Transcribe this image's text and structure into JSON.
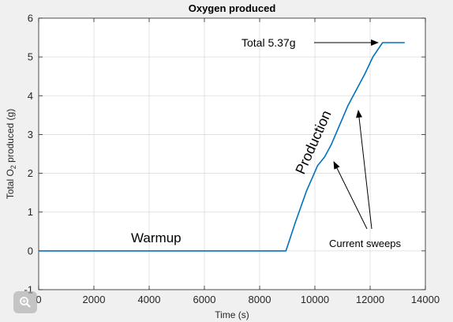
{
  "chart_data": {
    "type": "line",
    "title": "Oxygen produced",
    "xlabel": "Time (s)",
    "ylabel_prefix": "Total O",
    "ylabel_subscript": "2",
    "ylabel_suffix": " produced (g)",
    "xlim": [
      0,
      14000
    ],
    "ylim": [
      -1,
      6
    ],
    "xticks": [
      0,
      2000,
      4000,
      6000,
      8000,
      10000,
      12000,
      14000
    ],
    "yticks": [
      -1,
      0,
      1,
      2,
      3,
      4,
      5,
      6
    ],
    "grid": true,
    "series": [
      {
        "color": "#0072bd",
        "x": [
          0,
          8950,
          9300,
          9700,
          10100,
          10350,
          10600,
          10900,
          11200,
          11500,
          11800,
          12100,
          12450,
          13250
        ],
        "y": [
          0,
          0,
          0.75,
          1.55,
          2.2,
          2.42,
          2.75,
          3.25,
          3.75,
          4.15,
          4.55,
          5.0,
          5.37,
          5.37
        ]
      }
    ],
    "annotations": {
      "total": "Total 5.37g",
      "production": "Production",
      "warmup": "Warmup",
      "sweeps": "Current sweeps"
    }
  },
  "icons": {
    "zoom": "zoom-magnifier-icon"
  }
}
